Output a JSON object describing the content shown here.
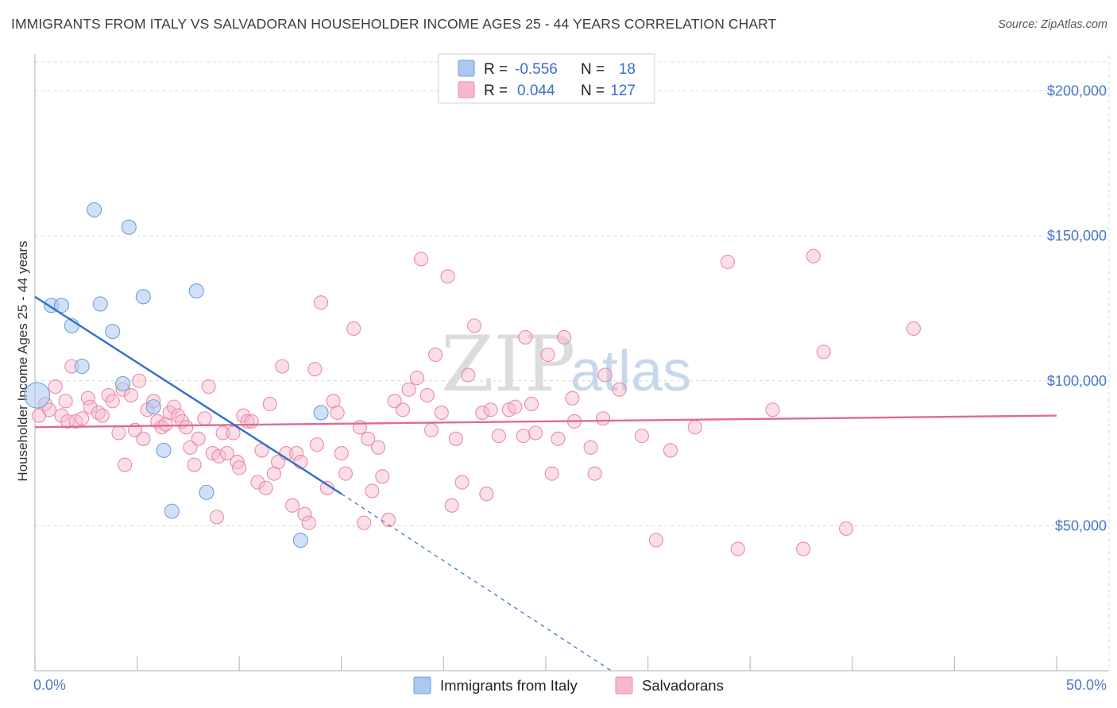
{
  "header": {
    "title": "IMMIGRANTS FROM ITALY VS SALVADORAN HOUSEHOLDER INCOME AGES 25 - 44 YEARS CORRELATION CHART",
    "source": "Source: ZipAtlas.com"
  },
  "watermark": {
    "zip": "ZIP",
    "atlas": "atlas"
  },
  "legend": {
    "r_label": "R =",
    "n_label": "N =",
    "rows": [
      {
        "series": "Immigrants from Italy",
        "r": "-0.556",
        "n": "18"
      },
      {
        "series": "Salvadorans",
        "r": "0.044",
        "n": "127"
      }
    ]
  },
  "colors": {
    "italy_fill": "#aac8f0",
    "italy_stroke": "#6f9fdc",
    "italy_line": "#2f6fd0",
    "salv_fill": "#f7b8cc",
    "salv_stroke": "#e98aaa",
    "salv_line": "#e06a92",
    "grid": "#d8d8d8",
    "axis_label": "#4a78c8"
  },
  "chart_data": {
    "type": "scatter",
    "title": "IMMIGRANTS FROM ITALY VS SALVADORAN HOUSEHOLDER INCOME AGES 25 - 44 YEARS CORRELATION CHART",
    "xlabel": "",
    "ylabel": "Householder Income Ages 25 - 44 years",
    "xlim": [
      0,
      50
    ],
    "ylim": [
      0,
      210000
    ],
    "x_tick_labels": [
      "0.0%",
      "50.0%"
    ],
    "y_ticks": [
      {
        "value": 50000,
        "label": "$50,000"
      },
      {
        "value": 100000,
        "label": "$100,000"
      },
      {
        "value": 150000,
        "label": "$150,000"
      },
      {
        "value": 200000,
        "label": "$200,000"
      }
    ],
    "series": [
      {
        "name": "Immigrants from Italy",
        "r": -0.556,
        "n": 18,
        "trend": {
          "x0": 0,
          "y0": 129000,
          "x1": 15,
          "y1": 61000,
          "dash_to_x": 28.2,
          "dash_to_y": 0
        },
        "points": [
          [
            0.1,
            95000,
            16
          ],
          [
            0.8,
            126000,
            9
          ],
          [
            1.3,
            126000,
            9
          ],
          [
            1.8,
            119000,
            9
          ],
          [
            2.3,
            105000,
            9
          ],
          [
            2.9,
            159000,
            9
          ],
          [
            3.2,
            126500,
            9
          ],
          [
            3.8,
            117000,
            9
          ],
          [
            4.3,
            99000,
            9
          ],
          [
            4.6,
            153000,
            9
          ],
          [
            5.3,
            129000,
            9
          ],
          [
            5.8,
            91000,
            9
          ],
          [
            6.3,
            76000,
            9
          ],
          [
            6.7,
            55000,
            9
          ],
          [
            7.9,
            131000,
            9
          ],
          [
            8.4,
            61500,
            9
          ],
          [
            13.0,
            45000,
            9
          ],
          [
            14.0,
            89000,
            9
          ]
        ]
      },
      {
        "name": "Salvadorans",
        "r": 0.044,
        "n": 127,
        "trend": {
          "x0": 0,
          "y0": 84000,
          "x1": 50,
          "y1": 88000
        },
        "points": [
          [
            0.2,
            88000
          ],
          [
            0.5,
            92000
          ],
          [
            0.7,
            90000
          ],
          [
            1.0,
            98000
          ],
          [
            1.3,
            88000
          ],
          [
            1.5,
            93000
          ],
          [
            1.6,
            86000
          ],
          [
            1.8,
            105000
          ],
          [
            2.0,
            86000
          ],
          [
            2.3,
            87000
          ],
          [
            2.6,
            94000
          ],
          [
            2.7,
            91000
          ],
          [
            3.1,
            89000
          ],
          [
            3.3,
            88000
          ],
          [
            3.6,
            95000
          ],
          [
            3.8,
            93000
          ],
          [
            4.1,
            82000
          ],
          [
            4.3,
            97000
          ],
          [
            4.4,
            71000
          ],
          [
            4.7,
            95000
          ],
          [
            4.9,
            83000
          ],
          [
            5.1,
            100000
          ],
          [
            5.3,
            80000
          ],
          [
            5.5,
            90000
          ],
          [
            5.8,
            93000
          ],
          [
            6.0,
            86000
          ],
          [
            6.2,
            84000
          ],
          [
            6.4,
            85000
          ],
          [
            6.6,
            89000
          ],
          [
            6.8,
            91000
          ],
          [
            7.0,
            88000
          ],
          [
            7.2,
            86000
          ],
          [
            7.4,
            84000
          ],
          [
            7.6,
            77000
          ],
          [
            7.8,
            71000
          ],
          [
            8.0,
            80000
          ],
          [
            8.3,
            87000
          ],
          [
            8.5,
            98000
          ],
          [
            8.7,
            75000
          ],
          [
            8.9,
            53000
          ],
          [
            9.0,
            74000
          ],
          [
            9.2,
            82000
          ],
          [
            9.4,
            75000
          ],
          [
            9.7,
            82000
          ],
          [
            9.9,
            72000
          ],
          [
            10.0,
            70000
          ],
          [
            10.2,
            88000
          ],
          [
            10.4,
            86000
          ],
          [
            10.6,
            86000
          ],
          [
            10.9,
            65000
          ],
          [
            11.1,
            76000
          ],
          [
            11.3,
            63000
          ],
          [
            11.5,
            92000
          ],
          [
            11.7,
            68000
          ],
          [
            11.9,
            72000
          ],
          [
            12.1,
            105000
          ],
          [
            12.3,
            75000
          ],
          [
            12.6,
            57000
          ],
          [
            12.8,
            75000
          ],
          [
            13.0,
            72000
          ],
          [
            13.2,
            54000
          ],
          [
            13.4,
            51000
          ],
          [
            13.7,
            104000
          ],
          [
            13.8,
            78000
          ],
          [
            14.0,
            127000
          ],
          [
            14.3,
            63000
          ],
          [
            14.6,
            93000
          ],
          [
            14.8,
            89000
          ],
          [
            15.0,
            75000
          ],
          [
            15.2,
            68000
          ],
          [
            15.6,
            118000
          ],
          [
            15.9,
            84000
          ],
          [
            16.1,
            51000
          ],
          [
            16.3,
            80000
          ],
          [
            16.5,
            62000
          ],
          [
            16.8,
            77000
          ],
          [
            17.0,
            67000
          ],
          [
            17.3,
            52000
          ],
          [
            17.6,
            93000
          ],
          [
            18.0,
            90000
          ],
          [
            18.3,
            97000
          ],
          [
            18.7,
            101000
          ],
          [
            18.9,
            142000
          ],
          [
            19.2,
            95000
          ],
          [
            19.4,
            83000
          ],
          [
            19.6,
            109000
          ],
          [
            19.9,
            89000
          ],
          [
            20.2,
            136000
          ],
          [
            20.4,
            57000
          ],
          [
            20.6,
            80000
          ],
          [
            20.9,
            65000
          ],
          [
            21.2,
            102000
          ],
          [
            21.5,
            119000
          ],
          [
            21.9,
            89000
          ],
          [
            22.1,
            61000
          ],
          [
            22.3,
            90000
          ],
          [
            22.7,
            81000
          ],
          [
            23.2,
            90000
          ],
          [
            23.5,
            91000
          ],
          [
            23.9,
            81000
          ],
          [
            24.0,
            115000
          ],
          [
            24.3,
            92000
          ],
          [
            24.5,
            82000
          ],
          [
            25.1,
            109000
          ],
          [
            25.3,
            68000
          ],
          [
            25.6,
            80000
          ],
          [
            25.9,
            115000
          ],
          [
            26.3,
            94000
          ],
          [
            26.4,
            86000
          ],
          [
            27.2,
            77000
          ],
          [
            27.4,
            68000
          ],
          [
            27.8,
            87000
          ],
          [
            27.9,
            102000
          ],
          [
            28.6,
            97000
          ],
          [
            29.7,
            81000
          ],
          [
            30.4,
            45000
          ],
          [
            31.1,
            76000
          ],
          [
            32.3,
            84000
          ],
          [
            33.9,
            141000
          ],
          [
            34.4,
            42000
          ],
          [
            36.1,
            90000
          ],
          [
            37.6,
            42000
          ],
          [
            38.1,
            143000
          ],
          [
            38.6,
            110000
          ],
          [
            39.7,
            49000
          ],
          [
            43.0,
            118000
          ]
        ]
      }
    ],
    "legend_position": "top-center",
    "grid": true
  },
  "bottom_legend": [
    {
      "label": "Immigrants from Italy"
    },
    {
      "label": "Salvadorans"
    }
  ]
}
